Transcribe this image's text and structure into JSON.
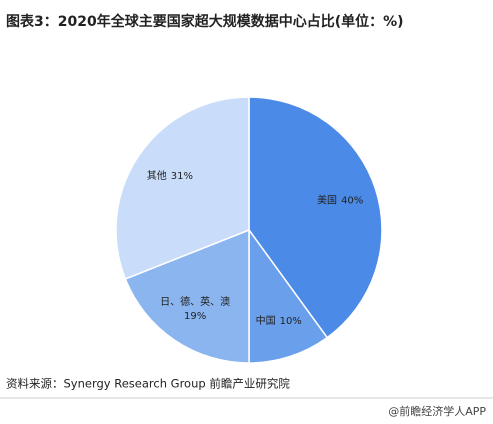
{
  "chart_data": {
    "type": "pie",
    "title": "图表3：2020年全球主要国家超大规模数据中心占比(单位：%)",
    "categories": [
      "美国",
      "中国",
      "日、德、英、澳",
      "其他"
    ],
    "values": [
      40,
      10,
      19,
      31
    ],
    "value_labels": [
      "40%",
      "10%",
      "19%",
      "31%"
    ],
    "colors": [
      "#4b8ae6",
      "#6a9fec",
      "#8ab5ef",
      "#c9ddfa"
    ],
    "source": "资料来源：Synergy Research Group 前瞻产业研究院",
    "footer": "@前瞻经济学人APP"
  }
}
